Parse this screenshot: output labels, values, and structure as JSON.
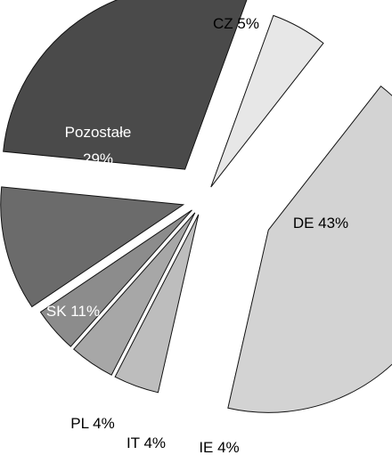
{
  "chart_data": {
    "type": "pie",
    "title": "",
    "slices": [
      {
        "label": "CZ",
        "value": 5,
        "display_label": "CZ 5%",
        "color": "#e7e7e7"
      },
      {
        "label": "DE",
        "value": 43,
        "display_label": "DE 43%",
        "color": "#d3d3d3"
      },
      {
        "label": "IE",
        "value": 4,
        "display_label": "IE 4%",
        "color": "#bdbdbd"
      },
      {
        "label": "IT",
        "value": 4,
        "display_label": "IT 4%",
        "color": "#a7a7a7"
      },
      {
        "label": "PL",
        "value": 4,
        "display_label": "PL 4%",
        "color": "#8c8c8c"
      },
      {
        "label": "SK",
        "value": 11,
        "display_label": "SK 11%",
        "color": "#6b6b6b"
      },
      {
        "label": "Pozostałe",
        "value": 29,
        "display_label": "Pozostałe\n29%",
        "color": "#4a4a4a"
      }
    ],
    "exploded": true
  }
}
